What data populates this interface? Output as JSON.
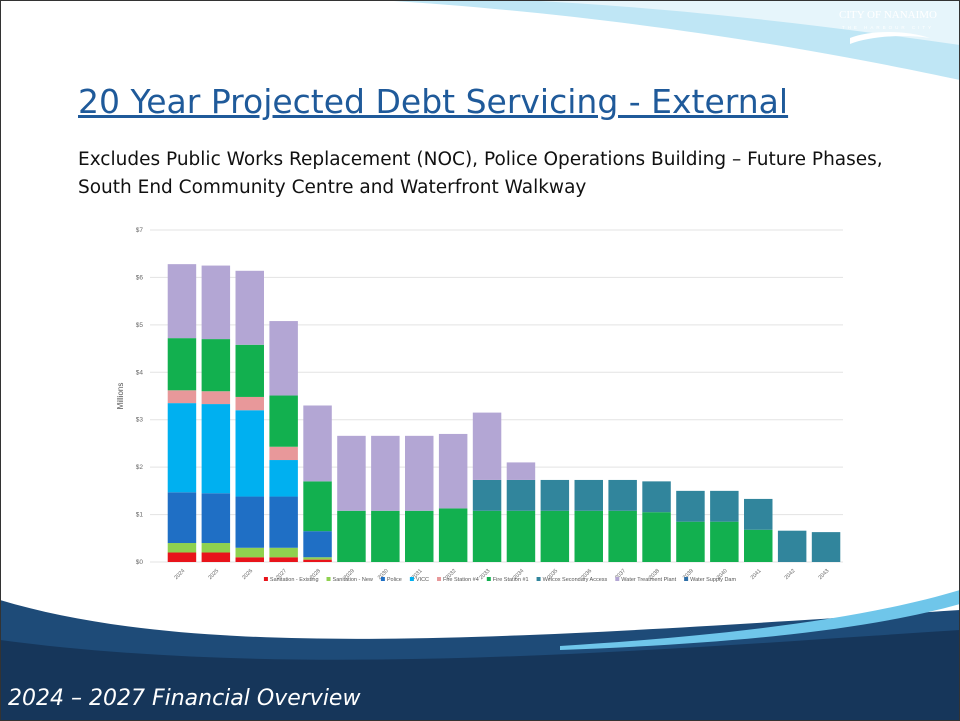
{
  "header": {
    "logo": "CITY OF NANAIMO",
    "tagline": "THE HARBOUR CITY"
  },
  "title": "20 Year Projected Debt Servicing - External",
  "subtitle": "Excludes Public Works Replacement (NOC), Police Operations Building – Future Phases, South End Community Centre and Waterfront Walkway",
  "footer": "2024 – 2027 Financial Overview",
  "chart_data": {
    "type": "stacked_bar",
    "ylabel": "Millions",
    "categories": [
      "2024",
      "2025",
      "2026",
      "2027",
      "2028",
      "2029",
      "2030",
      "2031",
      "2032",
      "2033",
      "2034",
      "2035",
      "2036",
      "2037",
      "2038",
      "2039",
      "2040",
      "2041",
      "2042",
      "2043"
    ],
    "ylim": [
      0,
      7
    ],
    "yticks": [
      {
        "value": 0,
        "label": "$0"
      },
      {
        "value": 1,
        "label": "$1"
      },
      {
        "value": 2,
        "label": "$2"
      },
      {
        "value": 3,
        "label": "$3"
      },
      {
        "value": 4,
        "label": "$4"
      },
      {
        "value": 5,
        "label": "$5"
      },
      {
        "value": 6,
        "label": "$6"
      },
      {
        "value": 7,
        "label": "$7"
      }
    ],
    "grid": true,
    "legend": "bottom",
    "series": [
      {
        "name": "Sanitation - Existing",
        "color": "#e8141b",
        "values": [
          0.2,
          0.2,
          0.1,
          0.1,
          0.05,
          0,
          0,
          0,
          0,
          0,
          0,
          0,
          0,
          0,
          0,
          0,
          0,
          0,
          0,
          0
        ]
      },
      {
        "name": "Sanitation - New",
        "color": "#8fd14f",
        "values": [
          0.2,
          0.2,
          0.2,
          0.2,
          0.05,
          0,
          0,
          0,
          0,
          0,
          0,
          0,
          0,
          0,
          0,
          0,
          0,
          0,
          0,
          0
        ]
      },
      {
        "name": "Police",
        "color": "#1f6fc5",
        "values": [
          1.07,
          1.05,
          1.08,
          1.08,
          0.55,
          0,
          0,
          0,
          0,
          0,
          0,
          0,
          0,
          0,
          0,
          0,
          0,
          0,
          0,
          0
        ]
      },
      {
        "name": "VICC",
        "color": "#00b0f0",
        "values": [
          1.88,
          1.88,
          1.82,
          0.77,
          0,
          0,
          0,
          0,
          0,
          0,
          0,
          0,
          0,
          0,
          0,
          0,
          0,
          0,
          0,
          0
        ]
      },
      {
        "name": "Fire Station #4",
        "color": "#e8989a",
        "values": [
          0.27,
          0.27,
          0.28,
          0.28,
          0,
          0,
          0,
          0,
          0,
          0,
          0,
          0,
          0,
          0,
          0,
          0,
          0,
          0,
          0,
          0
        ]
      },
      {
        "name": "Fire Station #1",
        "color": "#12b04f",
        "values": [
          1.1,
          1.1,
          1.1,
          1.08,
          1.05,
          1.08,
          1.08,
          1.08,
          1.13,
          1.08,
          1.08,
          1.08,
          1.08,
          1.08,
          1.05,
          0.85,
          0.85,
          0.68,
          0,
          0
        ]
      },
      {
        "name": "Welcox Secondary Access",
        "color": "#31859c",
        "values": [
          0,
          0,
          0,
          0,
          0,
          0,
          0,
          0,
          0,
          0.65,
          0.65,
          0.65,
          0.65,
          0.65,
          0.65,
          0.65,
          0.65,
          0.65,
          0.66,
          0.63
        ]
      },
      {
        "name": "Water Treatment Plant",
        "color": "#b3a6d4",
        "values": [
          1.56,
          1.55,
          1.56,
          1.57,
          1.6,
          1.58,
          1.58,
          1.58,
          1.57,
          1.42,
          0.37,
          0,
          0,
          0,
          0,
          0,
          0,
          0,
          0,
          0
        ]
      },
      {
        "name": "Water Supply Dam",
        "color": "#2e6fa8",
        "values": [
          0,
          0,
          0,
          0,
          0,
          0,
          0,
          0,
          0,
          0,
          0,
          0,
          0,
          0,
          0,
          0,
          0,
          0,
          0,
          0
        ]
      }
    ]
  }
}
